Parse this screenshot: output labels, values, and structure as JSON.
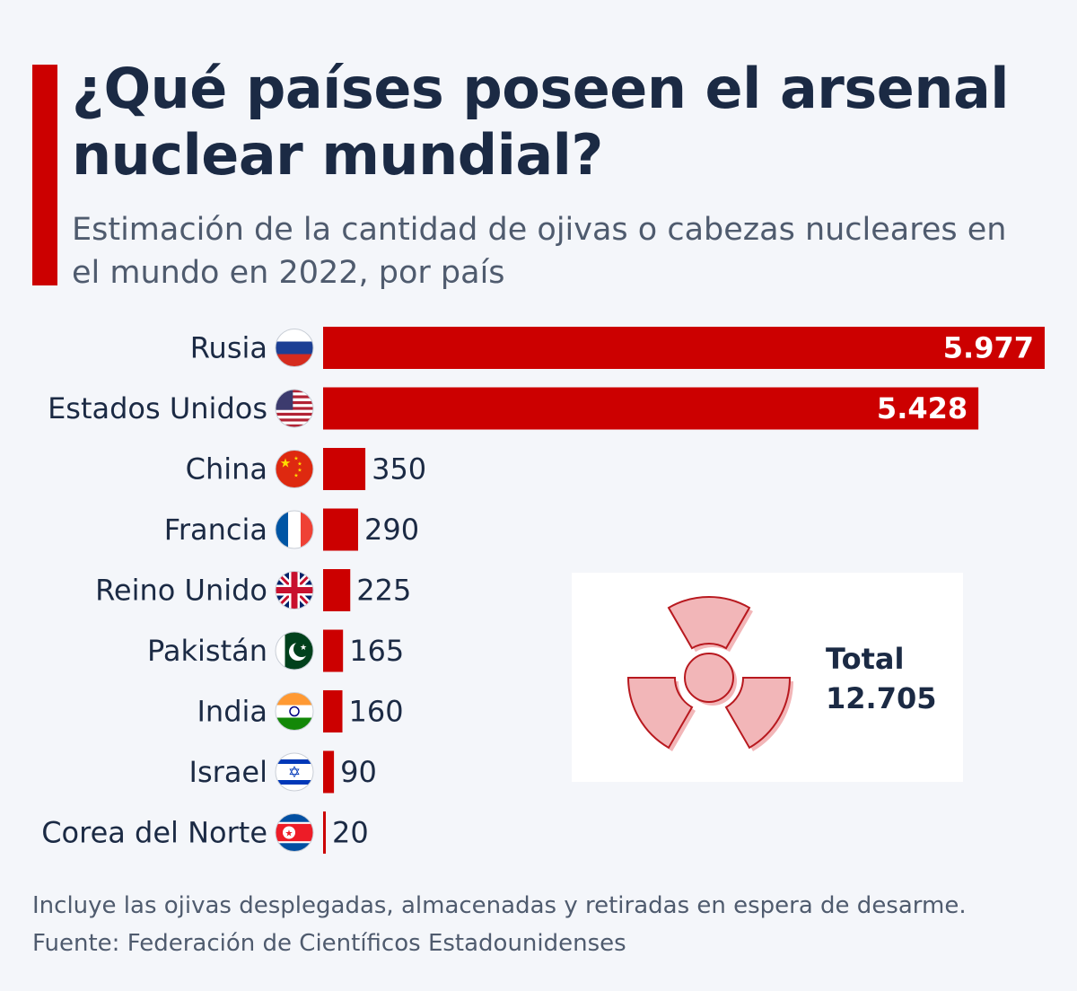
{
  "title": "¿Qué países poseen el arsenal nuclear mundial?",
  "subtitle": "Estimación de la cantidad de ojivas o cabezas nucleares en el mundo en 2022, por país",
  "colors": {
    "bar": "#cc0000",
    "accent": "#cc0000",
    "text": "#1b2a44",
    "background": "#f4f6fa"
  },
  "chart_data": {
    "type": "bar",
    "orientation": "horizontal",
    "categories": [
      "Rusia",
      "Estados Unidos",
      "China",
      "Francia",
      "Reino Unido",
      "Pakistán",
      "India",
      "Israel",
      "Corea del Norte"
    ],
    "values": [
      5977,
      5428,
      350,
      290,
      225,
      165,
      160,
      90,
      20
    ],
    "value_labels": [
      "5.977",
      "5.428",
      "350",
      "290",
      "225",
      "165",
      "160",
      "90",
      "20"
    ],
    "flags": [
      "russia-flag-icon",
      "usa-flag-icon",
      "china-flag-icon",
      "france-flag-icon",
      "uk-flag-icon",
      "pakistan-flag-icon",
      "india-flag-icon",
      "israel-flag-icon",
      "north-korea-flag-icon"
    ],
    "grid": false,
    "legend": "none"
  },
  "total": {
    "label": "Total",
    "value": "12.705",
    "icon": "radiation-icon"
  },
  "footnote": "Incluye las ojivas desplegadas, almacenadas y retiradas en espera de desarme.",
  "source": "Fuente: Federación de Científicos Estadounidenses"
}
